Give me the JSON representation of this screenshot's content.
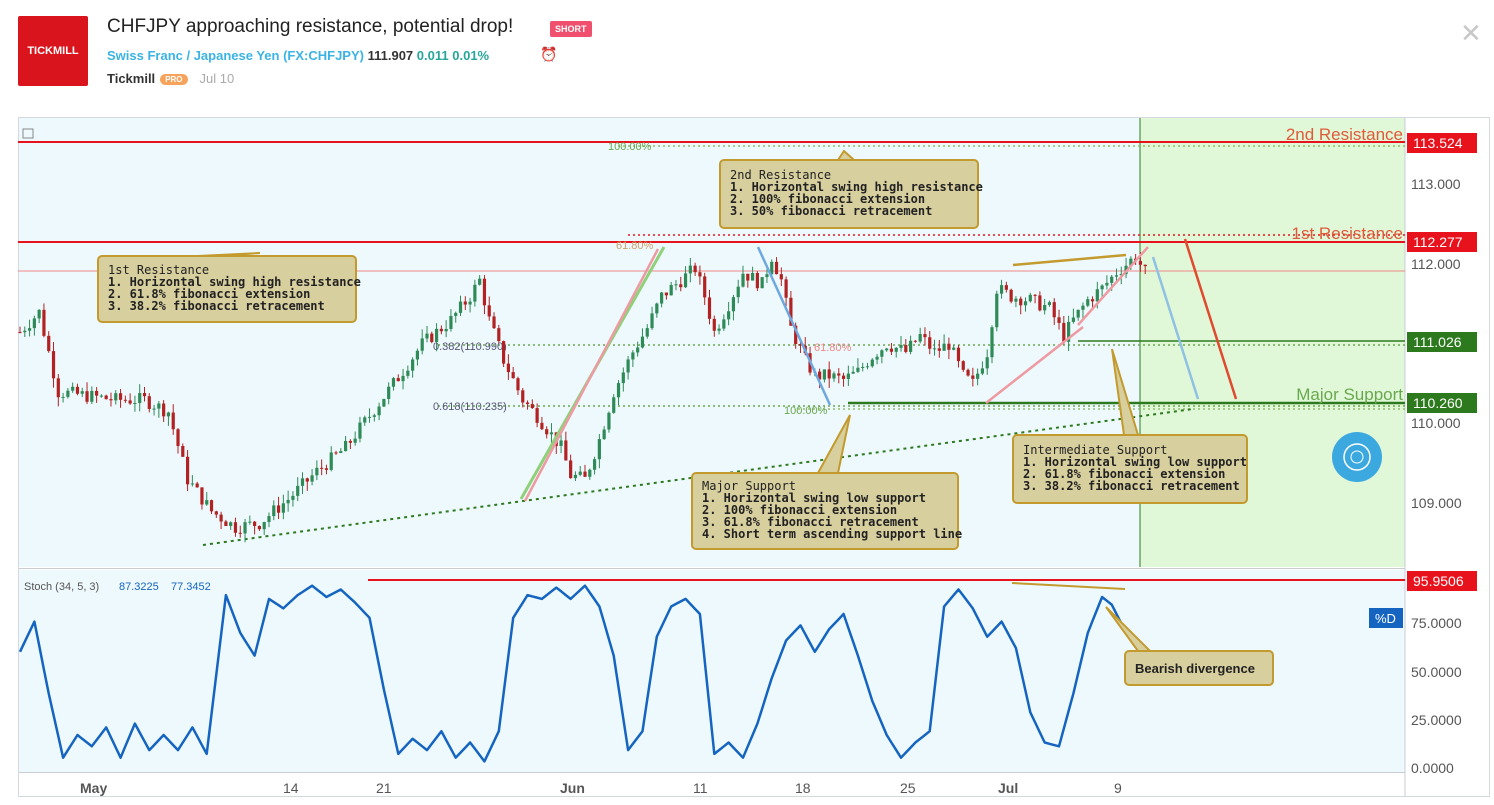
{
  "header": {
    "logo_text": "TICKMILL",
    "title": "CHFJPY approaching resistance, potential drop!",
    "badge": "SHORT",
    "symbol_name": "Swiss Franc / Japanese Yen",
    "symbol_code": "(FX:CHFJPY)",
    "price": "111.907",
    "change": "0.011",
    "change_pct": "0.01%",
    "author": "Tickmill",
    "pro_label": "PRO",
    "date": "Jul 10"
  },
  "colors": {
    "background": "#eef9fd",
    "bull": "#2e8b57",
    "bear": "#b22222",
    "resistance": "#e8121c",
    "support": "#2d7a1e",
    "stoch": "#1565c0",
    "note_fill": "#d8cf9f",
    "note_border": "#c39a2d",
    "forecast_zone": "#e0f8d8"
  },
  "chart_data": {
    "type": "candlestick",
    "symbol": "CHFJPY",
    "x_labels": [
      "May",
      "14",
      "21",
      "Jun",
      "11",
      "18",
      "25",
      "Jul",
      "9"
    ],
    "y_ticks": [
      "113.000",
      "112.000",
      "110.000",
      "109.000"
    ],
    "y_range": [
      108.2,
      113.85
    ],
    "close_path": [
      [
        0,
        111.15
      ],
      [
        4,
        111.4
      ],
      [
        8,
        110.4
      ],
      [
        14,
        110.35
      ],
      [
        20,
        110.3
      ],
      [
        26,
        110.3
      ],
      [
        31,
        110.15
      ],
      [
        35,
        109.3
      ],
      [
        40,
        108.9
      ],
      [
        45,
        108.7
      ],
      [
        50,
        108.75
      ],
      [
        56,
        109.05
      ],
      [
        62,
        109.4
      ],
      [
        68,
        109.7
      ],
      [
        73,
        110.1
      ],
      [
        78,
        110.5
      ],
      [
        84,
        111.0
      ],
      [
        90,
        111.3
      ],
      [
        94,
        111.6
      ],
      [
        96,
        111.8
      ],
      [
        98,
        111.3
      ],
      [
        101,
        110.8
      ],
      [
        105,
        110.3
      ],
      [
        108,
        110.1
      ],
      [
        113,
        109.7
      ],
      [
        115,
        109.35
      ],
      [
        118,
        109.3
      ],
      [
        121,
        109.8
      ],
      [
        124,
        110.4
      ],
      [
        128,
        110.9
      ],
      [
        131,
        111.2
      ],
      [
        134,
        111.6
      ],
      [
        138,
        111.8
      ],
      [
        141,
        111.95
      ],
      [
        143,
        111.6
      ],
      [
        145,
        111.15
      ],
      [
        148,
        111.5
      ],
      [
        151,
        111.9
      ],
      [
        155,
        111.75
      ],
      [
        157,
        112.1
      ],
      [
        159,
        111.8
      ],
      [
        161,
        111.2
      ],
      [
        164,
        110.8
      ],
      [
        166,
        110.6
      ],
      [
        169,
        110.6
      ],
      [
        172,
        110.55
      ],
      [
        175,
        110.65
      ],
      [
        178,
        110.85
      ],
      [
        181,
        111.0
      ],
      [
        185,
        110.9
      ],
      [
        188,
        111.1
      ],
      [
        191,
        110.9
      ],
      [
        194,
        111.0
      ],
      [
        197,
        110.6
      ],
      [
        199,
        110.5
      ],
      [
        202,
        110.9
      ],
      [
        204,
        111.7
      ],
      [
        207,
        111.6
      ],
      [
        211,
        111.55
      ],
      [
        215,
        111.45
      ],
      [
        218,
        111.1
      ],
      [
        220,
        111.3
      ],
      [
        223,
        111.55
      ],
      [
        226,
        111.7
      ],
      [
        229,
        111.9
      ],
      [
        231,
        112.0
      ],
      [
        233,
        112.1
      ],
      [
        235,
        111.9
      ]
    ],
    "horizontal_levels": [
      {
        "name": "2nd Resistance",
        "value": "113.524"
      },
      {
        "name": "1st Resistance",
        "value": "112.277"
      },
      {
        "name": "Intermediate Support",
        "value": "111.026"
      },
      {
        "name": "Major Support",
        "value": "110.260"
      }
    ],
    "fib_labels": [
      "100.00%",
      "61.80%",
      "0.382(110.990)",
      "0.618(110.235)",
      "100.00%",
      "61.80%"
    ],
    "annotations": {
      "second_resistance_title": "2nd Resistance",
      "second_resistance_lines": [
        "1. Horizontal swing high resistance",
        "2. 100% fibonacci extension",
        "3. 50% fibonacci retracement"
      ],
      "first_resistance_title": "1st Resistance",
      "first_resistance_lines": [
        "1. Horizontal swing high resistance",
        "2. 61.8% fibonacci extension",
        "3. 38.2% fibonacci retracement"
      ],
      "major_support_title": "Major Support",
      "major_support_lines": [
        "1. Horizontal swing low support",
        "2. 100% fibonacci extension",
        "3. 61.8% fibonacci retracement",
        "4. Short term ascending support line"
      ],
      "intermediate_title": "Intermediate Support",
      "intermediate_lines": [
        "1. Horizontal swing low support",
        "2. 61.8% fibonacci extension",
        "3. 38.2% fibonacci retracement"
      ],
      "bearish_divergence": "Bearish divergence"
    },
    "stoch": {
      "legend": "Stoch (34, 5, 3)",
      "k_value": "87.3225",
      "d_value": "77.3452",
      "d_tag": "%D",
      "level_tag": "95.9506",
      "y_ticks": [
        "75.0000",
        "50.0000",
        "25.0000",
        "0.0000"
      ],
      "y_range": [
        0,
        100
      ],
      "series": [
        [
          0,
          62
        ],
        [
          3,
          78
        ],
        [
          6,
          40
        ],
        [
          9,
          6
        ],
        [
          12,
          18
        ],
        [
          15,
          12
        ],
        [
          18,
          22
        ],
        [
          21,
          6
        ],
        [
          24,
          24
        ],
        [
          27,
          10
        ],
        [
          30,
          18
        ],
        [
          33,
          10
        ],
        [
          36,
          22
        ],
        [
          39,
          8
        ],
        [
          43,
          92
        ],
        [
          46,
          72
        ],
        [
          49,
          60
        ],
        [
          52,
          90
        ],
        [
          55,
          85
        ],
        [
          58,
          92
        ],
        [
          61,
          97
        ],
        [
          64,
          91
        ],
        [
          67,
          95
        ],
        [
          70,
          88
        ],
        [
          73,
          80
        ],
        [
          76,
          42
        ],
        [
          79,
          8
        ],
        [
          82,
          16
        ],
        [
          85,
          10
        ],
        [
          88,
          20
        ],
        [
          91,
          6
        ],
        [
          94,
          14
        ],
        [
          97,
          4
        ],
        [
          100,
          20
        ],
        [
          103,
          80
        ],
        [
          106,
          92
        ],
        [
          109,
          90
        ],
        [
          112,
          96
        ],
        [
          115,
          90
        ],
        [
          118,
          97
        ],
        [
          121,
          86
        ],
        [
          124,
          60
        ],
        [
          127,
          10
        ],
        [
          130,
          20
        ],
        [
          133,
          70
        ],
        [
          136,
          86
        ],
        [
          139,
          90
        ],
        [
          142,
          82
        ],
        [
          145,
          8
        ],
        [
          148,
          14
        ],
        [
          151,
          6
        ],
        [
          154,
          24
        ],
        [
          157,
          48
        ],
        [
          160,
          68
        ],
        [
          163,
          76
        ],
        [
          166,
          62
        ],
        [
          169,
          74
        ],
        [
          172,
          82
        ],
        [
          175,
          60
        ],
        [
          178,
          36
        ],
        [
          181,
          18
        ],
        [
          184,
          6
        ],
        [
          187,
          14
        ],
        [
          190,
          20
        ],
        [
          193,
          86
        ],
        [
          196,
          95
        ],
        [
          199,
          85
        ],
        [
          202,
          70
        ],
        [
          205,
          78
        ],
        [
          208,
          64
        ],
        [
          211,
          30
        ],
        [
          214,
          14
        ],
        [
          217,
          12
        ],
        [
          220,
          40
        ],
        [
          223,
          72
        ],
        [
          226,
          91
        ],
        [
          228,
          87
        ],
        [
          230,
          77
        ]
      ]
    }
  }
}
